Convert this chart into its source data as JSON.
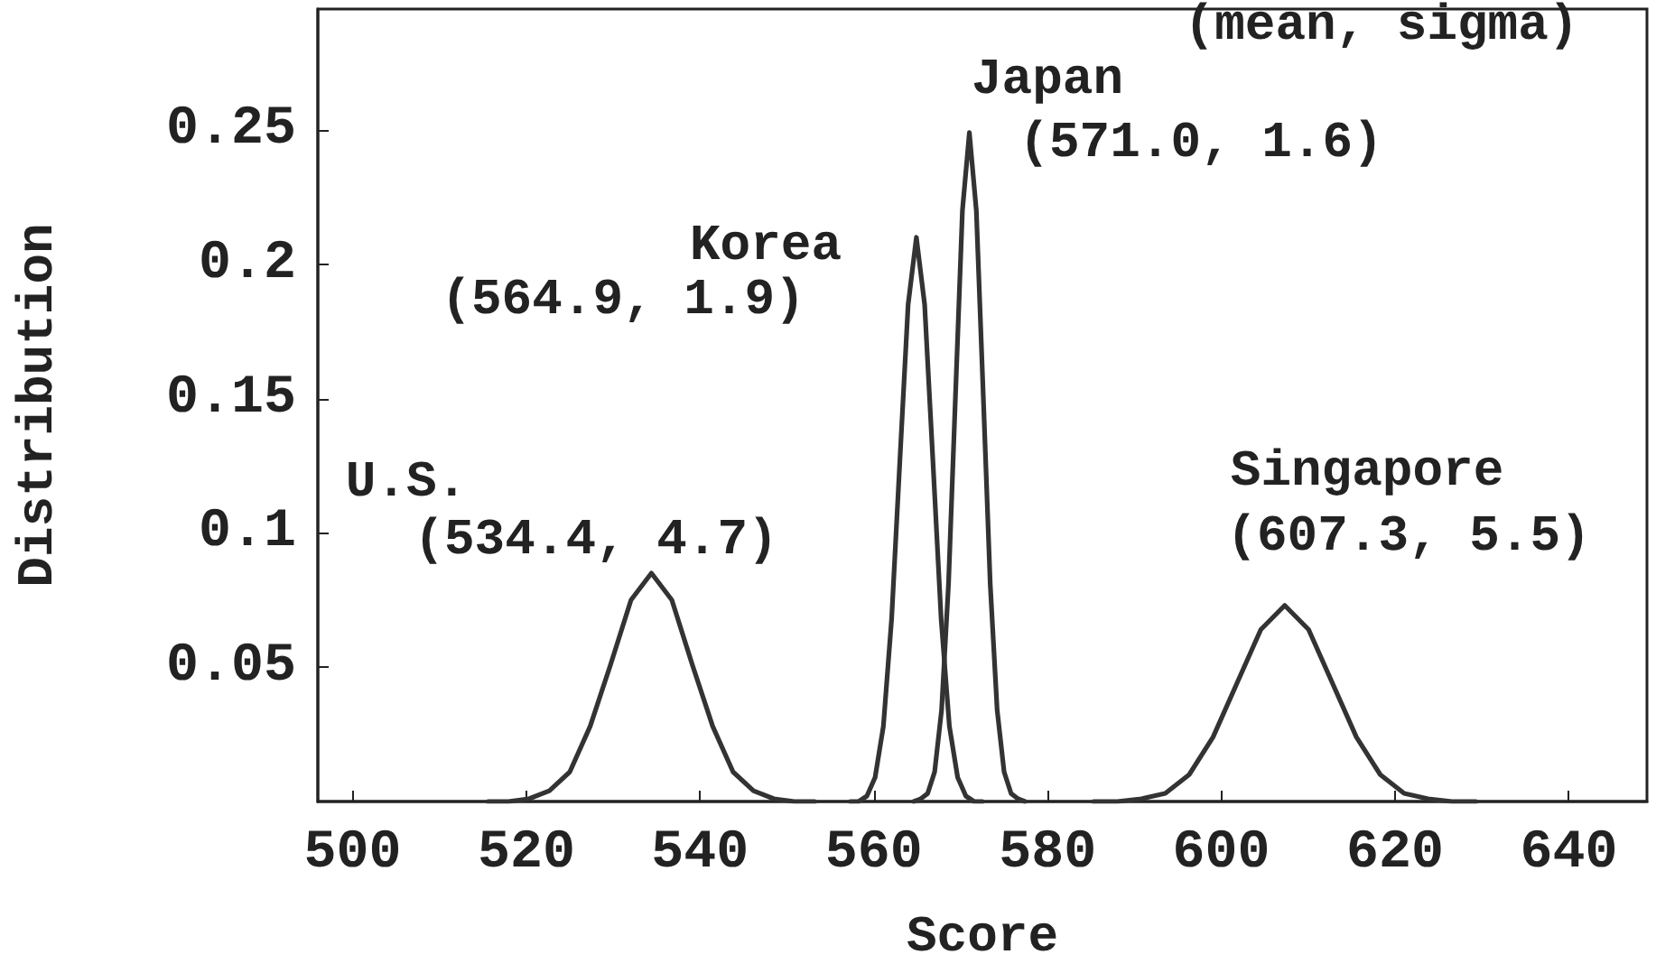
{
  "chart_data": {
    "type": "line",
    "xlabel": "Score",
    "ylabel": "Distribution",
    "xlim": [
      496,
      649
    ],
    "xticks": [
      500,
      520,
      540,
      560,
      580,
      600,
      620,
      640
    ],
    "ylim": [
      0,
      0.295
    ],
    "yticks": [
      0.05,
      0.1,
      0.15,
      0.2,
      0.25
    ],
    "grid": false,
    "marker": "none",
    "line_style": "solid",
    "series": [
      {
        "color": "#333333",
        "x": [
          515.6,
          517.95,
          520.3,
          522.65,
          525.0,
          527.35,
          529.7,
          532.05,
          534.4,
          536.75,
          539.1,
          541.45,
          543.8,
          546.15,
          548.5,
          550.85,
          553.2
        ],
        "values": [
          0.0,
          0.0,
          0.001,
          0.004,
          0.011,
          0.028,
          0.051,
          0.075,
          0.085,
          0.075,
          0.051,
          0.028,
          0.011,
          0.004,
          0.001,
          0.0,
          0.0
        ]
      },
      {
        "color": "#333333",
        "x": [
          557.3,
          558.25,
          559.2,
          560.15,
          561.1,
          562.05,
          563.0,
          563.95,
          564.9,
          565.85,
          566.8,
          567.75,
          568.7,
          569.65,
          570.6,
          571.55,
          572.5
        ],
        "values": [
          0.0,
          0.0,
          0.002,
          0.009,
          0.028,
          0.068,
          0.127,
          0.185,
          0.21,
          0.185,
          0.127,
          0.068,
          0.028,
          0.009,
          0.002,
          0.0,
          0.0
        ]
      },
      {
        "color": "#333333",
        "x": [
          564.6,
          565.4,
          566.2,
          567.0,
          567.8,
          568.6,
          569.4,
          570.2,
          571.0,
          571.8,
          572.6,
          573.4,
          574.2,
          575.0,
          575.8,
          576.6,
          577.4
        ],
        "values": [
          0.0,
          0.001,
          0.003,
          0.011,
          0.034,
          0.081,
          0.151,
          0.22,
          0.249,
          0.22,
          0.151,
          0.081,
          0.034,
          0.011,
          0.003,
          0.001,
          0.0
        ]
      },
      {
        "color": "#333333",
        "x": [
          585.3,
          588.05,
          590.8,
          593.55,
          596.3,
          599.05,
          601.8,
          604.55,
          607.3,
          610.05,
          612.8,
          615.55,
          618.3,
          621.05,
          623.8,
          626.55,
          629.3
        ],
        "values": [
          0.0,
          0.0,
          0.001,
          0.003,
          0.01,
          0.024,
          0.044,
          0.064,
          0.073,
          0.064,
          0.044,
          0.024,
          0.01,
          0.003,
          0.001,
          0.0,
          0.0
        ]
      }
    ],
    "annotations": [
      "(mean, sigma)",
      "Japan",
      "(571.0, 1.6)",
      "Korea",
      "(564.9, 1.9)",
      "U.S.",
      "(534.4, 4.7)",
      "Singapore",
      "(607.3, 5.5)"
    ]
  }
}
